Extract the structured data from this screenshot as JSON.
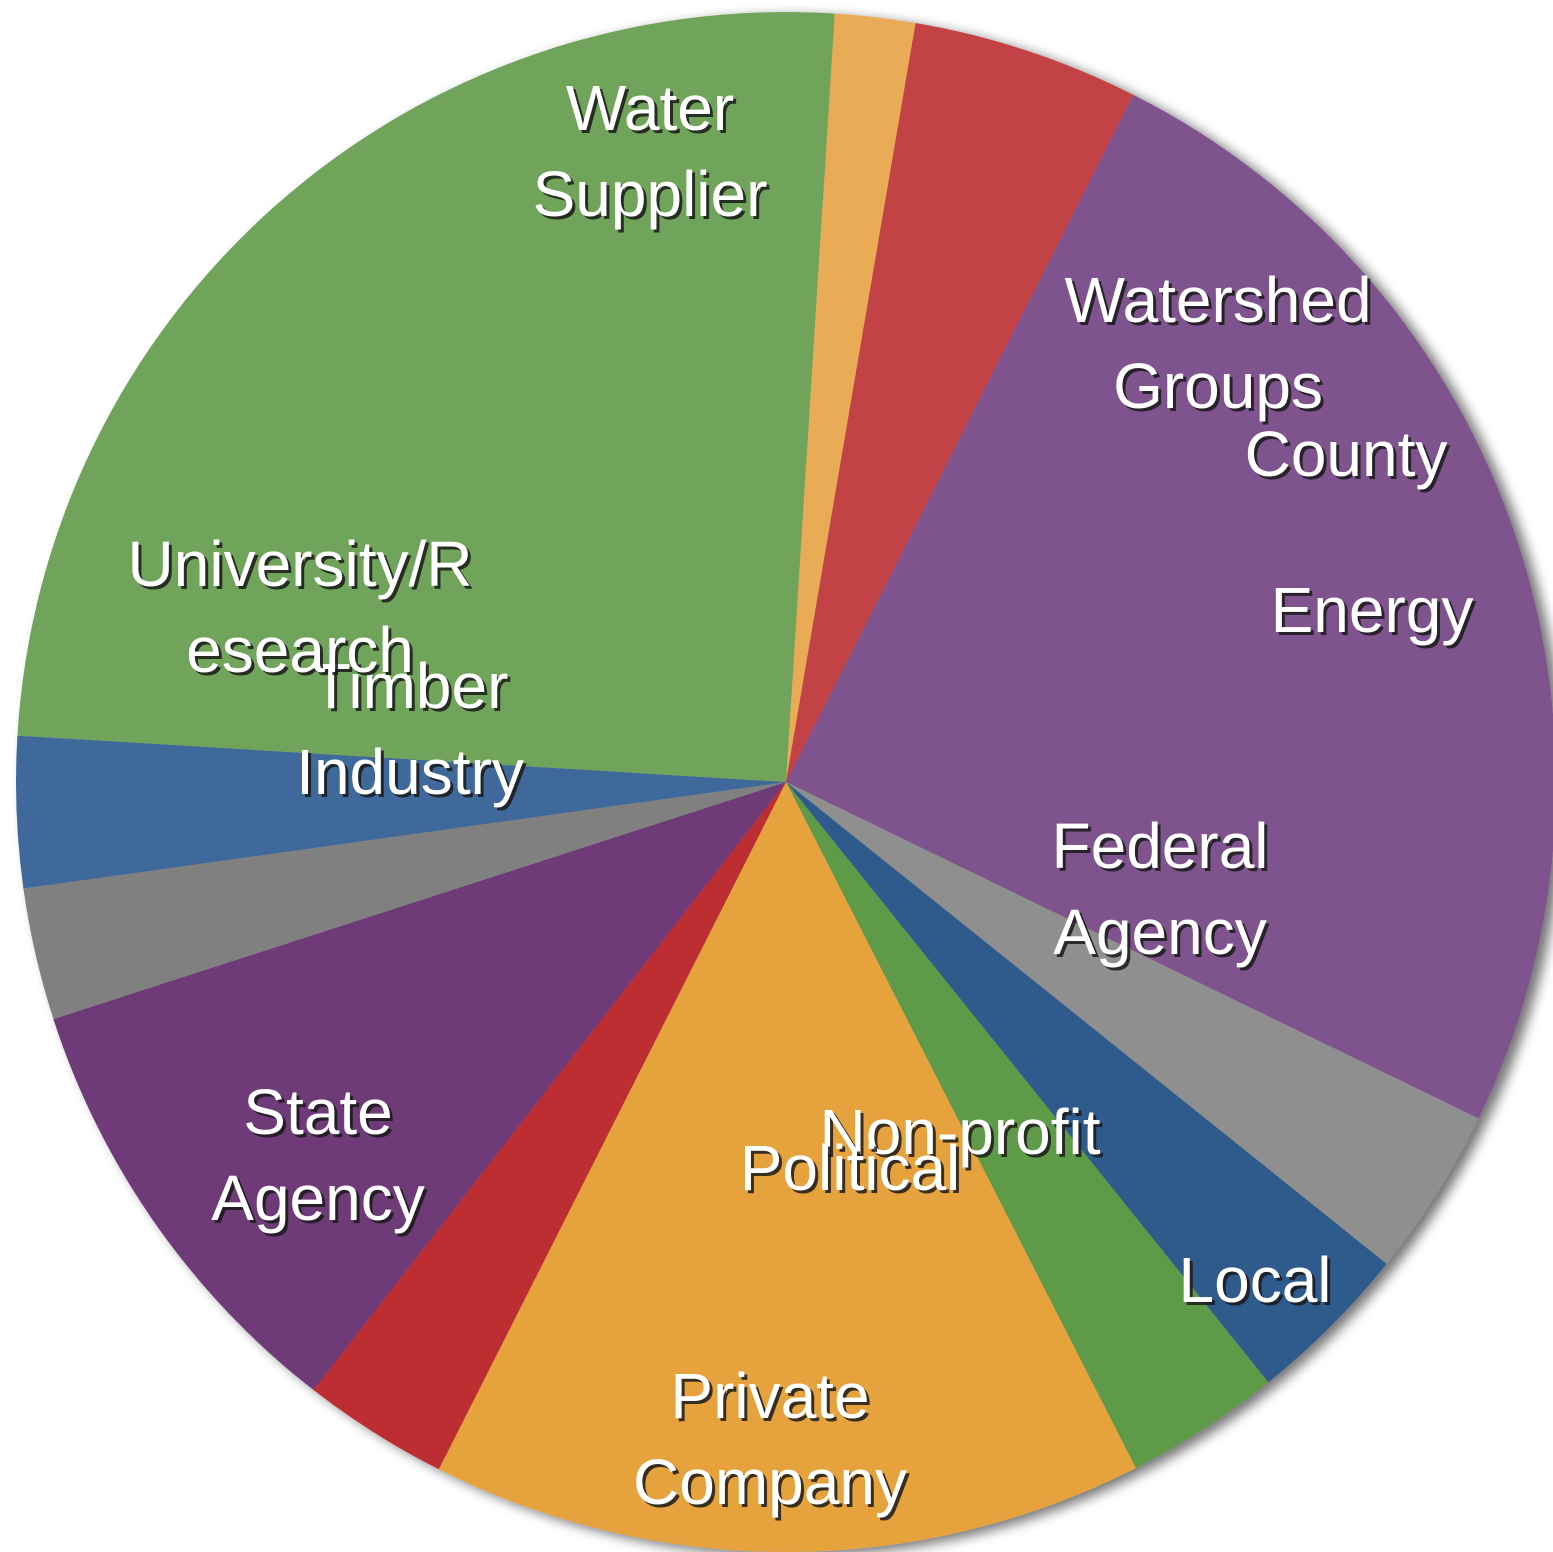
{
  "chart_data": {
    "type": "pie",
    "start_angle_deg": 63.2,
    "direction": "clockwise",
    "categories": [
      "Water Supplier",
      "Watershed Groups",
      "County",
      "Energy",
      "Federal Agency",
      "Local",
      "Non-profit",
      "Political",
      "Private Company",
      "State Agency",
      "Timber Industry",
      "University/Research"
    ],
    "values": [
      25.0,
      3.6,
      3.5,
      3.3,
      15.1,
      3.1,
      9.6,
      2.8,
      3.2,
      25.3,
      1.7,
      4.8
    ],
    "colors": [
      "#7f528d",
      "#8e8f8e",
      "#2f5a8c",
      "#5e9a49",
      "#e6a23d",
      "#bd2d30",
      "#6e3b78",
      "#808080",
      "#41699b",
      "#70a45a",
      "#e9ab56",
      "#c34245"
    ],
    "labels": [
      {
        "lines": [
          "Water",
          "Supplier"
        ]
      },
      {
        "lines": [
          "Watershed",
          "Groups"
        ]
      },
      {
        "lines": [
          "County"
        ]
      },
      {
        "lines": [
          "Energy"
        ]
      },
      {
        "lines": [
          "Federal",
          "Agency"
        ]
      },
      {
        "lines": [
          "Local"
        ]
      },
      {
        "lines": [
          "Non-profit"
        ]
      },
      {
        "lines": [
          "Political"
        ]
      },
      {
        "lines": [
          "Private",
          "Company"
        ]
      },
      {
        "lines": [
          "State",
          "Agency"
        ]
      },
      {
        "lines": [
          "Timber",
          "Industry"
        ]
      },
      {
        "lines": [
          "University/R",
          "esearch"
        ]
      }
    ],
    "title": "",
    "legend": "none"
  }
}
